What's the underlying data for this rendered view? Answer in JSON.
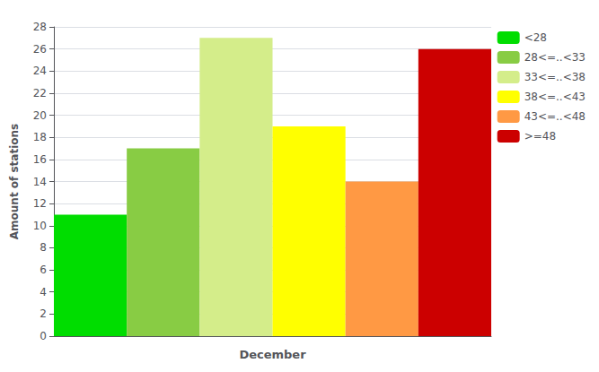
{
  "chart_data": {
    "type": "bar",
    "categories": [
      "<28",
      "28<=..<33",
      "33<=..<38",
      "38<=..<43",
      "43<=..<48",
      ">=48"
    ],
    "values": [
      11,
      17,
      27,
      19,
      14,
      26
    ],
    "colors": [
      "#00dd00",
      "#88cc44",
      "#d4ed8a",
      "#ffff00",
      "#ff9944",
      "#cc0000"
    ],
    "xlabel": "December",
    "ylabel": "Amount of stations",
    "ylim": [
      0,
      28
    ],
    "yticks": [
      0,
      2,
      4,
      6,
      8,
      10,
      12,
      14,
      16,
      18,
      20,
      22,
      24,
      26,
      28
    ],
    "grid": true,
    "legend": "upper right",
    "tick_labels": "y"
  }
}
